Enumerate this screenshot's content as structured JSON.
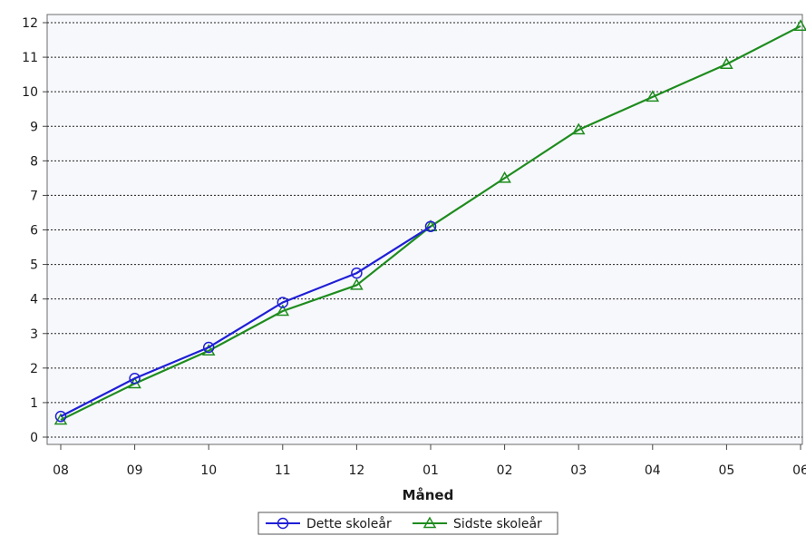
{
  "chart_data": {
    "type": "line",
    "title": "",
    "xlabel": "Måned",
    "ylabel": "",
    "categories": [
      "08",
      "09",
      "10",
      "11",
      "12",
      "01",
      "02",
      "03",
      "04",
      "05",
      "06"
    ],
    "ylim": [
      0,
      12
    ],
    "yticks": [
      0,
      1,
      2,
      3,
      4,
      5,
      6,
      7,
      8,
      9,
      10,
      11,
      12
    ],
    "grid": true,
    "legend_position": "bottom-center",
    "series": [
      {
        "name": "Dette skoleår",
        "color": "#1f1fd6",
        "marker": "circle",
        "values": [
          0.6,
          1.7,
          2.6,
          3.9,
          4.75,
          6.1,
          null,
          null,
          null,
          null,
          null
        ]
      },
      {
        "name": "Sidste skoleår",
        "color": "#1e8c1e",
        "marker": "triangle",
        "values": [
          0.5,
          1.55,
          2.5,
          3.65,
          4.4,
          6.1,
          7.5,
          8.9,
          9.85,
          10.8,
          11.9
        ]
      }
    ]
  }
}
